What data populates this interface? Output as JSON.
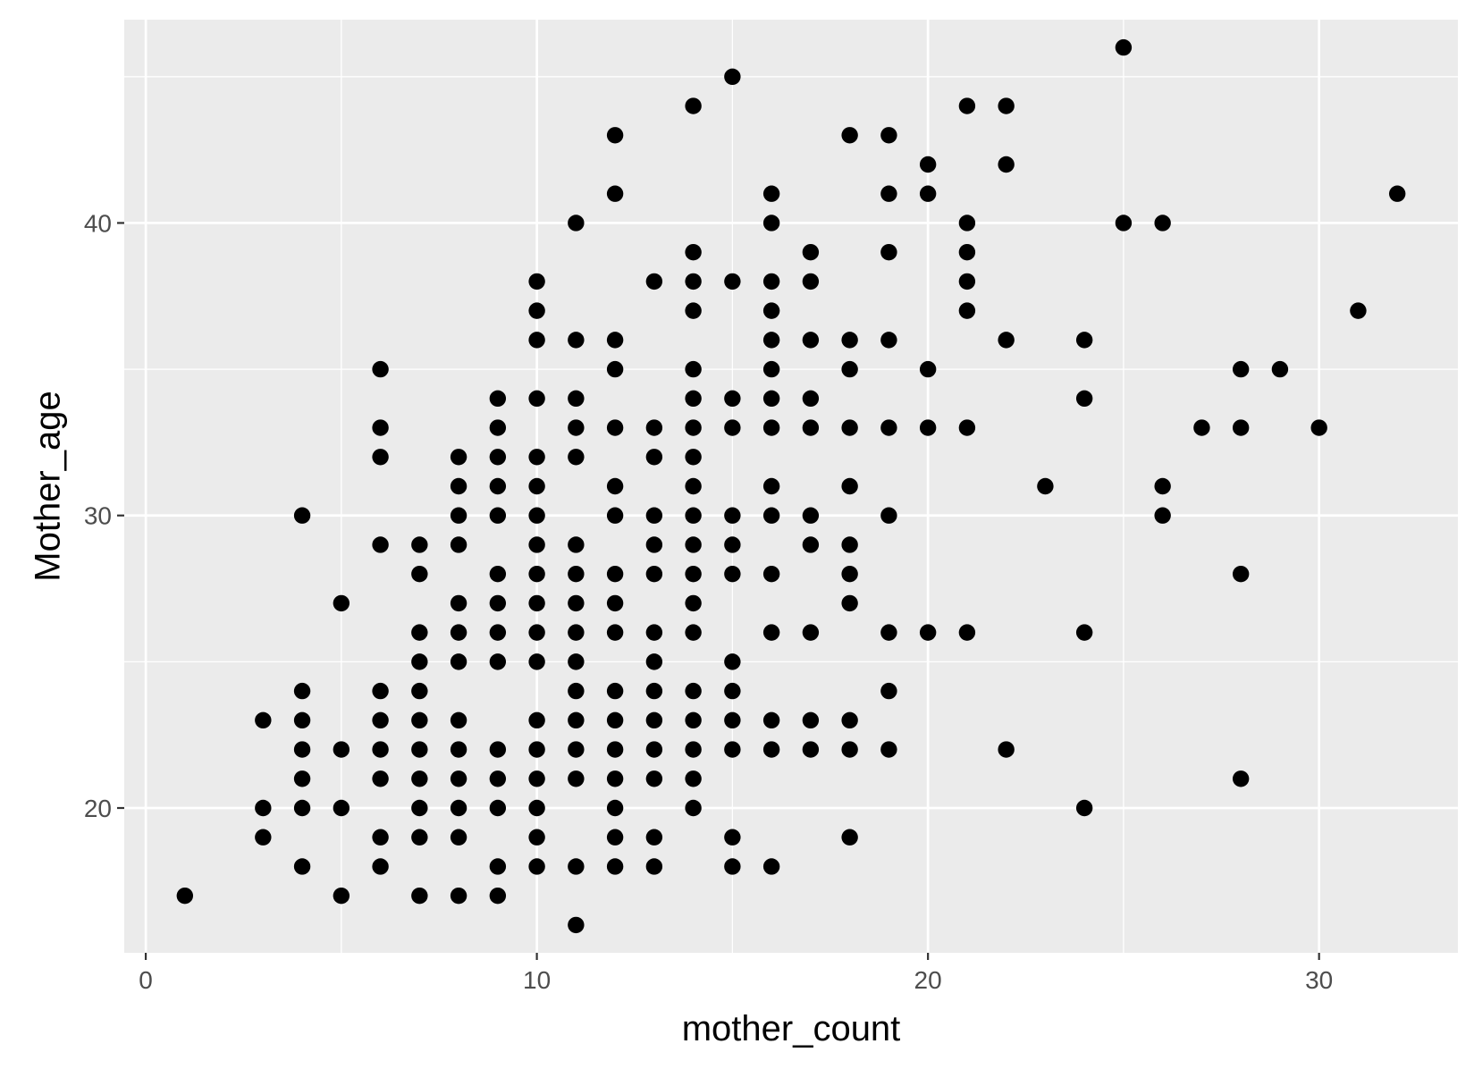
{
  "chart_data": {
    "type": "scatter",
    "title": "",
    "xlabel": "mother_count",
    "ylabel": "Mother_age",
    "xlim": [
      -0.55,
      33.55
    ],
    "ylim": [
      15.05,
      46.95
    ],
    "x_ticks": [
      0,
      10,
      20,
      30
    ],
    "y_ticks": [
      20,
      30,
      40
    ],
    "x_tick_labels": [
      "0",
      "10",
      "20",
      "30"
    ],
    "y_tick_labels": [
      "20",
      "30",
      "40"
    ],
    "grid": true,
    "legend": "none",
    "colors": {
      "panel": "#ebebeb",
      "grid": "#ffffff",
      "point": "#000000",
      "tick_text": "#4d4d4d",
      "title_text": "#000000"
    },
    "points": [
      [
        1,
        17
      ],
      [
        3,
        23
      ],
      [
        3,
        20
      ],
      [
        3,
        19
      ],
      [
        4,
        30
      ],
      [
        4,
        24
      ],
      [
        4,
        23
      ],
      [
        4,
        22
      ],
      [
        4,
        21
      ],
      [
        4,
        20
      ],
      [
        4,
        18
      ],
      [
        5,
        27
      ],
      [
        5,
        22
      ],
      [
        5,
        20
      ],
      [
        5,
        17
      ],
      [
        6,
        35
      ],
      [
        6,
        33
      ],
      [
        6,
        32
      ],
      [
        6,
        29
      ],
      [
        6,
        24
      ],
      [
        6,
        23
      ],
      [
        6,
        22
      ],
      [
        6,
        21
      ],
      [
        6,
        19
      ],
      [
        6,
        18
      ],
      [
        7,
        29
      ],
      [
        7,
        28
      ],
      [
        7,
        26
      ],
      [
        7,
        25
      ],
      [
        7,
        24
      ],
      [
        7,
        23
      ],
      [
        7,
        22
      ],
      [
        7,
        21
      ],
      [
        7,
        20
      ],
      [
        7,
        19
      ],
      [
        7,
        17
      ],
      [
        8,
        32
      ],
      [
        8,
        31
      ],
      [
        8,
        30
      ],
      [
        8,
        29
      ],
      [
        8,
        27
      ],
      [
        8,
        26
      ],
      [
        8,
        25
      ],
      [
        8,
        23
      ],
      [
        8,
        22
      ],
      [
        8,
        21
      ],
      [
        8,
        20
      ],
      [
        8,
        19
      ],
      [
        8,
        17
      ],
      [
        9,
        34
      ],
      [
        9,
        33
      ],
      [
        9,
        32
      ],
      [
        9,
        31
      ],
      [
        9,
        30
      ],
      [
        9,
        28
      ],
      [
        9,
        27
      ],
      [
        9,
        26
      ],
      [
        9,
        25
      ],
      [
        9,
        22
      ],
      [
        9,
        21
      ],
      [
        9,
        20
      ],
      [
        9,
        18
      ],
      [
        9,
        17
      ],
      [
        10,
        38
      ],
      [
        10,
        37
      ],
      [
        10,
        36
      ],
      [
        10,
        34
      ],
      [
        10,
        32
      ],
      [
        10,
        31
      ],
      [
        10,
        30
      ],
      [
        10,
        29
      ],
      [
        10,
        28
      ],
      [
        10,
        27
      ],
      [
        10,
        26
      ],
      [
        10,
        25
      ],
      [
        10,
        23
      ],
      [
        10,
        22
      ],
      [
        10,
        21
      ],
      [
        10,
        20
      ],
      [
        10,
        19
      ],
      [
        10,
        18
      ],
      [
        11,
        40
      ],
      [
        11,
        36
      ],
      [
        11,
        34
      ],
      [
        11,
        33
      ],
      [
        11,
        32
      ],
      [
        11,
        29
      ],
      [
        11,
        28
      ],
      [
        11,
        27
      ],
      [
        11,
        26
      ],
      [
        11,
        25
      ],
      [
        11,
        24
      ],
      [
        11,
        23
      ],
      [
        11,
        22
      ],
      [
        11,
        21
      ],
      [
        11,
        18
      ],
      [
        11,
        16
      ],
      [
        12,
        43
      ],
      [
        12,
        41
      ],
      [
        12,
        36
      ],
      [
        12,
        35
      ],
      [
        12,
        33
      ],
      [
        12,
        31
      ],
      [
        12,
        30
      ],
      [
        12,
        28
      ],
      [
        12,
        27
      ],
      [
        12,
        26
      ],
      [
        12,
        24
      ],
      [
        12,
        23
      ],
      [
        12,
        22
      ],
      [
        12,
        21
      ],
      [
        12,
        20
      ],
      [
        12,
        19
      ],
      [
        12,
        18
      ],
      [
        13,
        38
      ],
      [
        13,
        33
      ],
      [
        13,
        32
      ],
      [
        13,
        30
      ],
      [
        13,
        29
      ],
      [
        13,
        28
      ],
      [
        13,
        26
      ],
      [
        13,
        25
      ],
      [
        13,
        24
      ],
      [
        13,
        23
      ],
      [
        13,
        22
      ],
      [
        13,
        21
      ],
      [
        13,
        19
      ],
      [
        13,
        18
      ],
      [
        14,
        44
      ],
      [
        14,
        39
      ],
      [
        14,
        38
      ],
      [
        14,
        37
      ],
      [
        14,
        35
      ],
      [
        14,
        34
      ],
      [
        14,
        33
      ],
      [
        14,
        32
      ],
      [
        14,
        31
      ],
      [
        14,
        30
      ],
      [
        14,
        29
      ],
      [
        14,
        28
      ],
      [
        14,
        27
      ],
      [
        14,
        26
      ],
      [
        14,
        24
      ],
      [
        14,
        23
      ],
      [
        14,
        22
      ],
      [
        14,
        21
      ],
      [
        14,
        20
      ],
      [
        15,
        45
      ],
      [
        15,
        38
      ],
      [
        15,
        34
      ],
      [
        15,
        33
      ],
      [
        15,
        30
      ],
      [
        15,
        29
      ],
      [
        15,
        28
      ],
      [
        15,
        25
      ],
      [
        15,
        24
      ],
      [
        15,
        23
      ],
      [
        15,
        22
      ],
      [
        15,
        19
      ],
      [
        15,
        18
      ],
      [
        16,
        41
      ],
      [
        16,
        40
      ],
      [
        16,
        38
      ],
      [
        16,
        37
      ],
      [
        16,
        36
      ],
      [
        16,
        35
      ],
      [
        16,
        34
      ],
      [
        16,
        33
      ],
      [
        16,
        31
      ],
      [
        16,
        30
      ],
      [
        16,
        28
      ],
      [
        16,
        26
      ],
      [
        16,
        23
      ],
      [
        16,
        22
      ],
      [
        16,
        18
      ],
      [
        17,
        39
      ],
      [
        17,
        38
      ],
      [
        17,
        36
      ],
      [
        17,
        34
      ],
      [
        17,
        33
      ],
      [
        17,
        30
      ],
      [
        17,
        29
      ],
      [
        17,
        26
      ],
      [
        17,
        23
      ],
      [
        17,
        22
      ],
      [
        18,
        43
      ],
      [
        18,
        36
      ],
      [
        18,
        35
      ],
      [
        18,
        33
      ],
      [
        18,
        31
      ],
      [
        18,
        29
      ],
      [
        18,
        28
      ],
      [
        18,
        27
      ],
      [
        18,
        23
      ],
      [
        18,
        22
      ],
      [
        18,
        19
      ],
      [
        19,
        43
      ],
      [
        19,
        41
      ],
      [
        19,
        39
      ],
      [
        19,
        36
      ],
      [
        19,
        33
      ],
      [
        19,
        30
      ],
      [
        19,
        26
      ],
      [
        19,
        24
      ],
      [
        19,
        22
      ],
      [
        20,
        42
      ],
      [
        20,
        41
      ],
      [
        20,
        35
      ],
      [
        20,
        33
      ],
      [
        20,
        26
      ],
      [
        21,
        44
      ],
      [
        21,
        40
      ],
      [
        21,
        39
      ],
      [
        21,
        38
      ],
      [
        21,
        37
      ],
      [
        21,
        33
      ],
      [
        21,
        26
      ],
      [
        22,
        44
      ],
      [
        22,
        42
      ],
      [
        22,
        36
      ],
      [
        22,
        22
      ],
      [
        23,
        31
      ],
      [
        24,
        36
      ],
      [
        24,
        34
      ],
      [
        24,
        26
      ],
      [
        24,
        20
      ],
      [
        25,
        46
      ],
      [
        25,
        40
      ],
      [
        26,
        40
      ],
      [
        26,
        31
      ],
      [
        26,
        30
      ],
      [
        27,
        33
      ],
      [
        28,
        35
      ],
      [
        28,
        33
      ],
      [
        28,
        28
      ],
      [
        28,
        21
      ],
      [
        29,
        35
      ],
      [
        30,
        33
      ],
      [
        31,
        37
      ],
      [
        32,
        41
      ]
    ]
  }
}
